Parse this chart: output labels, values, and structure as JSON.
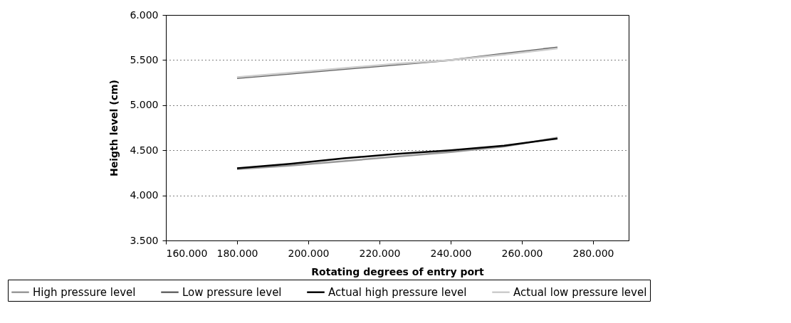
{
  "chart_data": {
    "type": "line",
    "xlabel": "Rotating degrees of entry port",
    "ylabel": "Heigth level (cm)",
    "x": [
      180,
      195,
      210,
      225,
      240,
      255,
      270
    ],
    "series": [
      {
        "name": "High pressure level",
        "color": "#999999",
        "values": [
          4.29,
          4.33,
          4.38,
          4.43,
          4.48,
          4.54,
          4.64
        ]
      },
      {
        "name": "Low pressure level",
        "color": "#666666",
        "values": [
          5.3,
          5.35,
          5.4,
          5.45,
          5.5,
          5.57,
          5.64
        ]
      },
      {
        "name": "Actual high pressure level",
        "color": "#000000",
        "values": [
          4.3,
          4.35,
          4.41,
          4.46,
          4.5,
          4.55,
          4.63
        ]
      },
      {
        "name": "Actual low pressure level",
        "color": "#cccccc",
        "values": [
          5.31,
          5.36,
          5.41,
          5.46,
          5.5,
          5.56,
          5.63
        ]
      }
    ],
    "xlim": [
      160,
      290
    ],
    "xticks": [
      {
        "value": 160,
        "label": "160.000"
      },
      {
        "value": 180,
        "label": "180.000"
      },
      {
        "value": 200,
        "label": "200.000"
      },
      {
        "value": 220,
        "label": "220.000"
      },
      {
        "value": 240,
        "label": "240.000"
      },
      {
        "value": 260,
        "label": "260.000"
      },
      {
        "value": 280,
        "label": "280.000"
      }
    ],
    "ylim": [
      3.5,
      6
    ],
    "yticks": [
      {
        "value": 3.5,
        "label": "3.500"
      },
      {
        "value": 4,
        "label": "4.000"
      },
      {
        "value": 4.5,
        "label": "4.500"
      },
      {
        "value": 5,
        "label": "5.000"
      },
      {
        "value": 5.5,
        "label": "5.500"
      },
      {
        "value": 6,
        "label": "6.000"
      }
    ],
    "grid": "y",
    "legend": "bottom",
    "marker": "none",
    "line_style": "solid"
  }
}
